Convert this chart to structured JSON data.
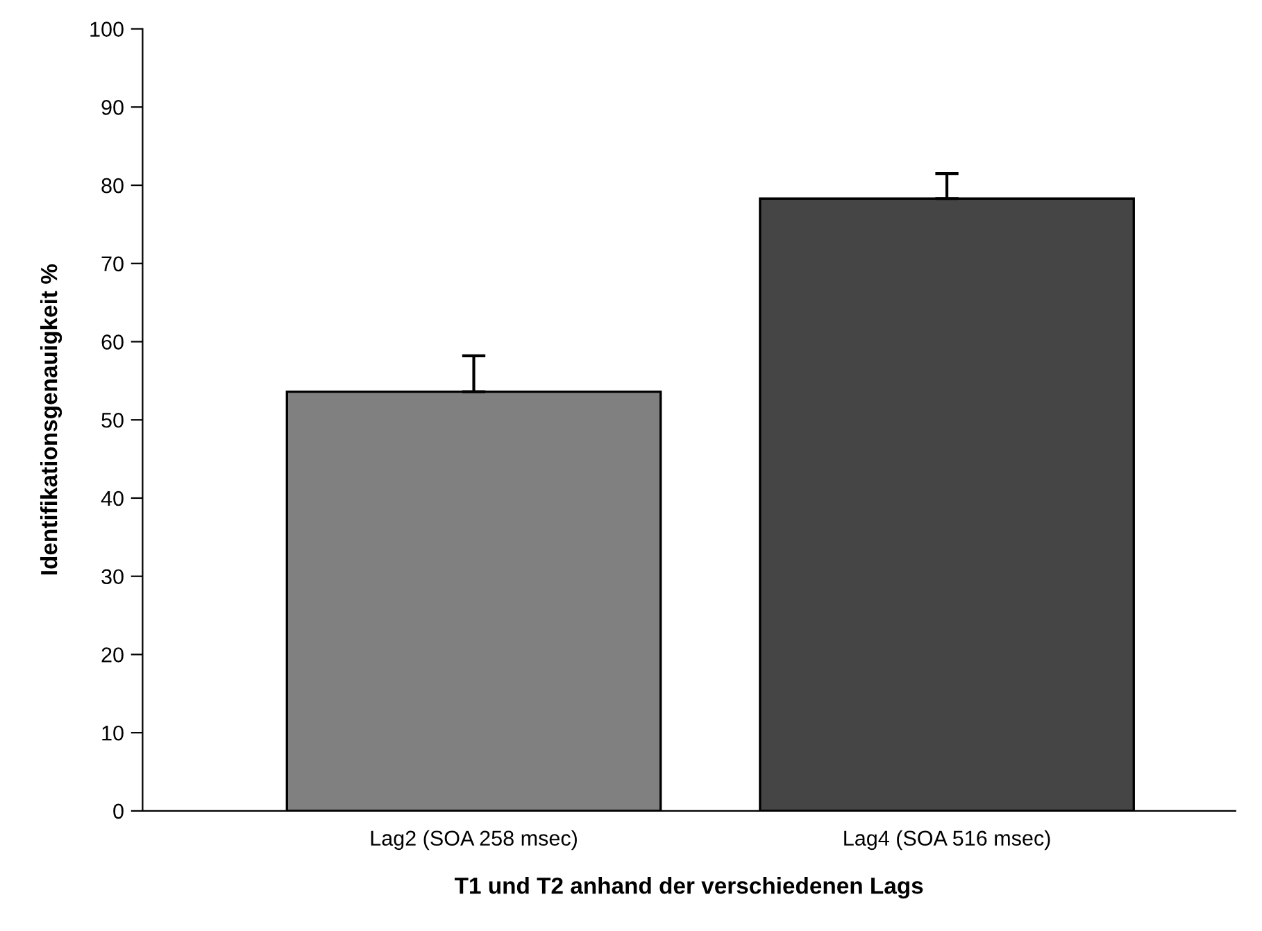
{
  "chart_data": {
    "type": "bar",
    "categories": [
      "Lag2 (SOA 258 msec)",
      "Lag4 (SOA 516 msec)"
    ],
    "values": [
      53.6,
      78.3
    ],
    "colors": [
      "#808080",
      "#454545"
    ],
    "errors": [
      [
        53.6,
        58.2
      ],
      [
        78.3,
        81.5
      ]
    ],
    "xlabel": "T1 und T2 anhand der verschiedenen Lags",
    "ylabel": "Identifikationsgenauigkeit %",
    "ylim": [
      0,
      100
    ],
    "yticks": [
      0,
      10,
      20,
      30,
      40,
      50,
      60,
      70,
      80,
      90,
      100
    ],
    "grid": false,
    "legend": false
  }
}
